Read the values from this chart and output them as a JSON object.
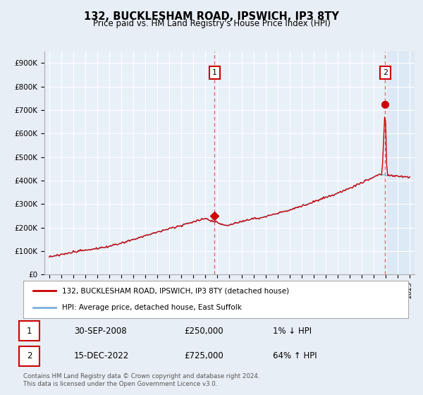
{
  "title": "132, BUCKLESHAM ROAD, IPSWICH, IP3 8TY",
  "subtitle": "Price paid vs. HM Land Registry's House Price Index (HPI)",
  "ylim": [
    0,
    950000
  ],
  "yticks": [
    0,
    100000,
    200000,
    300000,
    400000,
    500000,
    600000,
    700000,
    800000,
    900000
  ],
  "ytick_labels": [
    "£0",
    "£100K",
    "£200K",
    "£300K",
    "£400K",
    "£500K",
    "£600K",
    "£700K",
    "£800K",
    "£900K"
  ],
  "xlim_start": 1994.6,
  "xlim_end": 2025.4,
  "hpi_color": "#7ab0e0",
  "price_color": "#cc0000",
  "background_color": "#e8eef5",
  "plot_bg_color": "#e8f0f8",
  "marker1_date": 2008.75,
  "marker1_value": 250000,
  "marker1_label": "1",
  "marker2_date": 2022.96,
  "marker2_value": 725000,
  "marker2_label": "2",
  "legend_line1": "132, BUCKLESHAM ROAD, IPSWICH, IP3 8TY (detached house)",
  "legend_line2": "HPI: Average price, detached house, East Suffolk",
  "table_row1": [
    "1",
    "30-SEP-2008",
    "£250,000",
    "1% ↓ HPI"
  ],
  "table_row2": [
    "2",
    "15-DEC-2022",
    "£725,000",
    "64% ↑ HPI"
  ],
  "footnote1": "Contains HM Land Registry data © Crown copyright and database right 2024.",
  "footnote2": "This data is licensed under the Open Government Licence v3.0."
}
